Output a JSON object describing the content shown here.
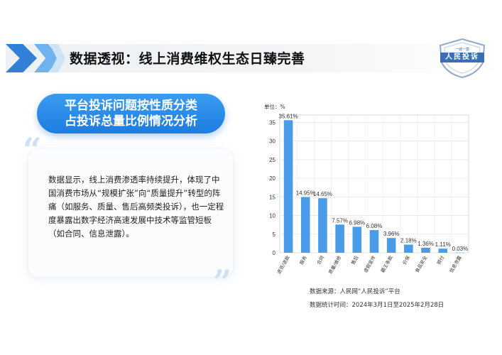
{
  "header": {
    "title": "数据透视：线上消费维权生态日臻完善"
  },
  "logo": {
    "top_text": "一城一案",
    "name": "人民投诉"
  },
  "subtitle": {
    "line1": "平台投诉问题按性质分类",
    "line2": "占投诉总量比例情况分析"
  },
  "description": "数据显示，线上消费渗透率持续提升，体现了中国消费市场从“规模扩张”向“质量提升”转型的阵痛（如服务、质量、售后高频类投诉），也一定程度暴露出数字经济高速发展中技术等监管短板（如合同、信息泄露）。",
  "footer": {
    "source": "数据来源：人民网“人民投诉”平台",
    "period": "数据统计时间：2024年3月1日至2025年2月28日"
  },
  "colors": {
    "bar": "#4a9be8",
    "accent": "#2f80d6"
  },
  "chart_data": {
    "type": "bar",
    "unit_label": "单位：%",
    "categories": [
      "退货/退款",
      "服务",
      "合同",
      "质量/维修",
      "售后",
      "虚假宣传",
      "霸王条款",
      "价保",
      "食品安全",
      "预付",
      "信息泄露"
    ],
    "values": [
      35.61,
      14.95,
      14.65,
      7.57,
      6.98,
      6.08,
      3.96,
      2.18,
      1.36,
      1.11,
      0.03
    ],
    "value_labels": [
      "35.61%",
      "14.95%",
      "14.65%",
      "7.57%",
      "6.98%",
      "6.08%",
      "3.96%",
      "2.18%",
      "1.36%",
      "1.11%",
      "0.03%"
    ],
    "yticks": [
      0,
      5,
      10,
      15,
      20,
      25,
      30,
      35
    ],
    "ylim": [
      0,
      37
    ],
    "grid": true
  }
}
